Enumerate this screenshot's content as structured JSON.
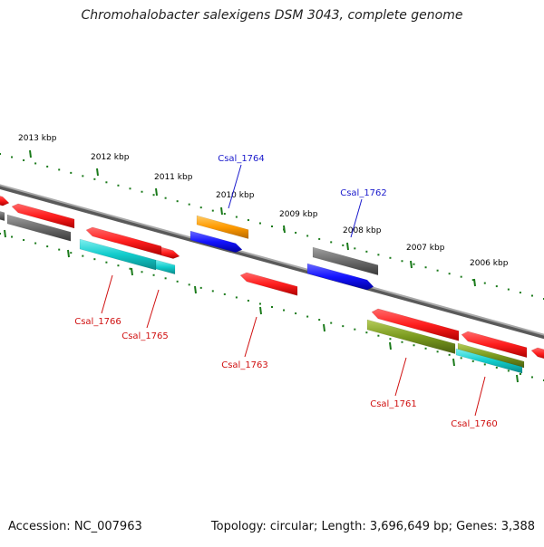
{
  "header": {
    "title": "Chromohalobacter salexigens DSM 3043, complete genome"
  },
  "footer": {
    "accession": "Accession: NC_007963",
    "summary": "Topology: circular; Length: 3,696,649 bp; Genes: 3,388"
  },
  "colors": {
    "backbone": "#8c8c8c",
    "tick": "#1a7a1a",
    "tick_label": "#000000",
    "label_top": "#1a1acc",
    "label_bottom": "#d01010",
    "red": "#ff1e1e",
    "gray": "#6b6b6b",
    "cyan": "#11cccc",
    "orange": "#ff9a00",
    "blue": "#1414ff",
    "olive": "#7a9a1e"
  },
  "scale": {
    "outer_labels": [
      "2013 kbp",
      "2012 kbp",
      "2011 kbp",
      "2010 kbp",
      "2009 kbp",
      "2008 kbp",
      "2007 kbp",
      "2006 kbp"
    ]
  },
  "genes": {
    "labeled": [
      {
        "id": "Csal_1764",
        "strand": "plus",
        "color": "orange"
      },
      {
        "id": "Csal_1762",
        "strand": "plus",
        "color": "gray"
      },
      {
        "id": "Csal_1766",
        "strand": "minus",
        "color": "cyan"
      },
      {
        "id": "Csal_1765",
        "strand": "minus",
        "color": "cyan"
      },
      {
        "id": "Csal_1763",
        "strand": "minus",
        "color": "red"
      },
      {
        "id": "Csal_1761",
        "strand": "minus",
        "color": "red"
      },
      {
        "id": "Csal_1760",
        "strand": "minus",
        "color": "red"
      }
    ]
  }
}
